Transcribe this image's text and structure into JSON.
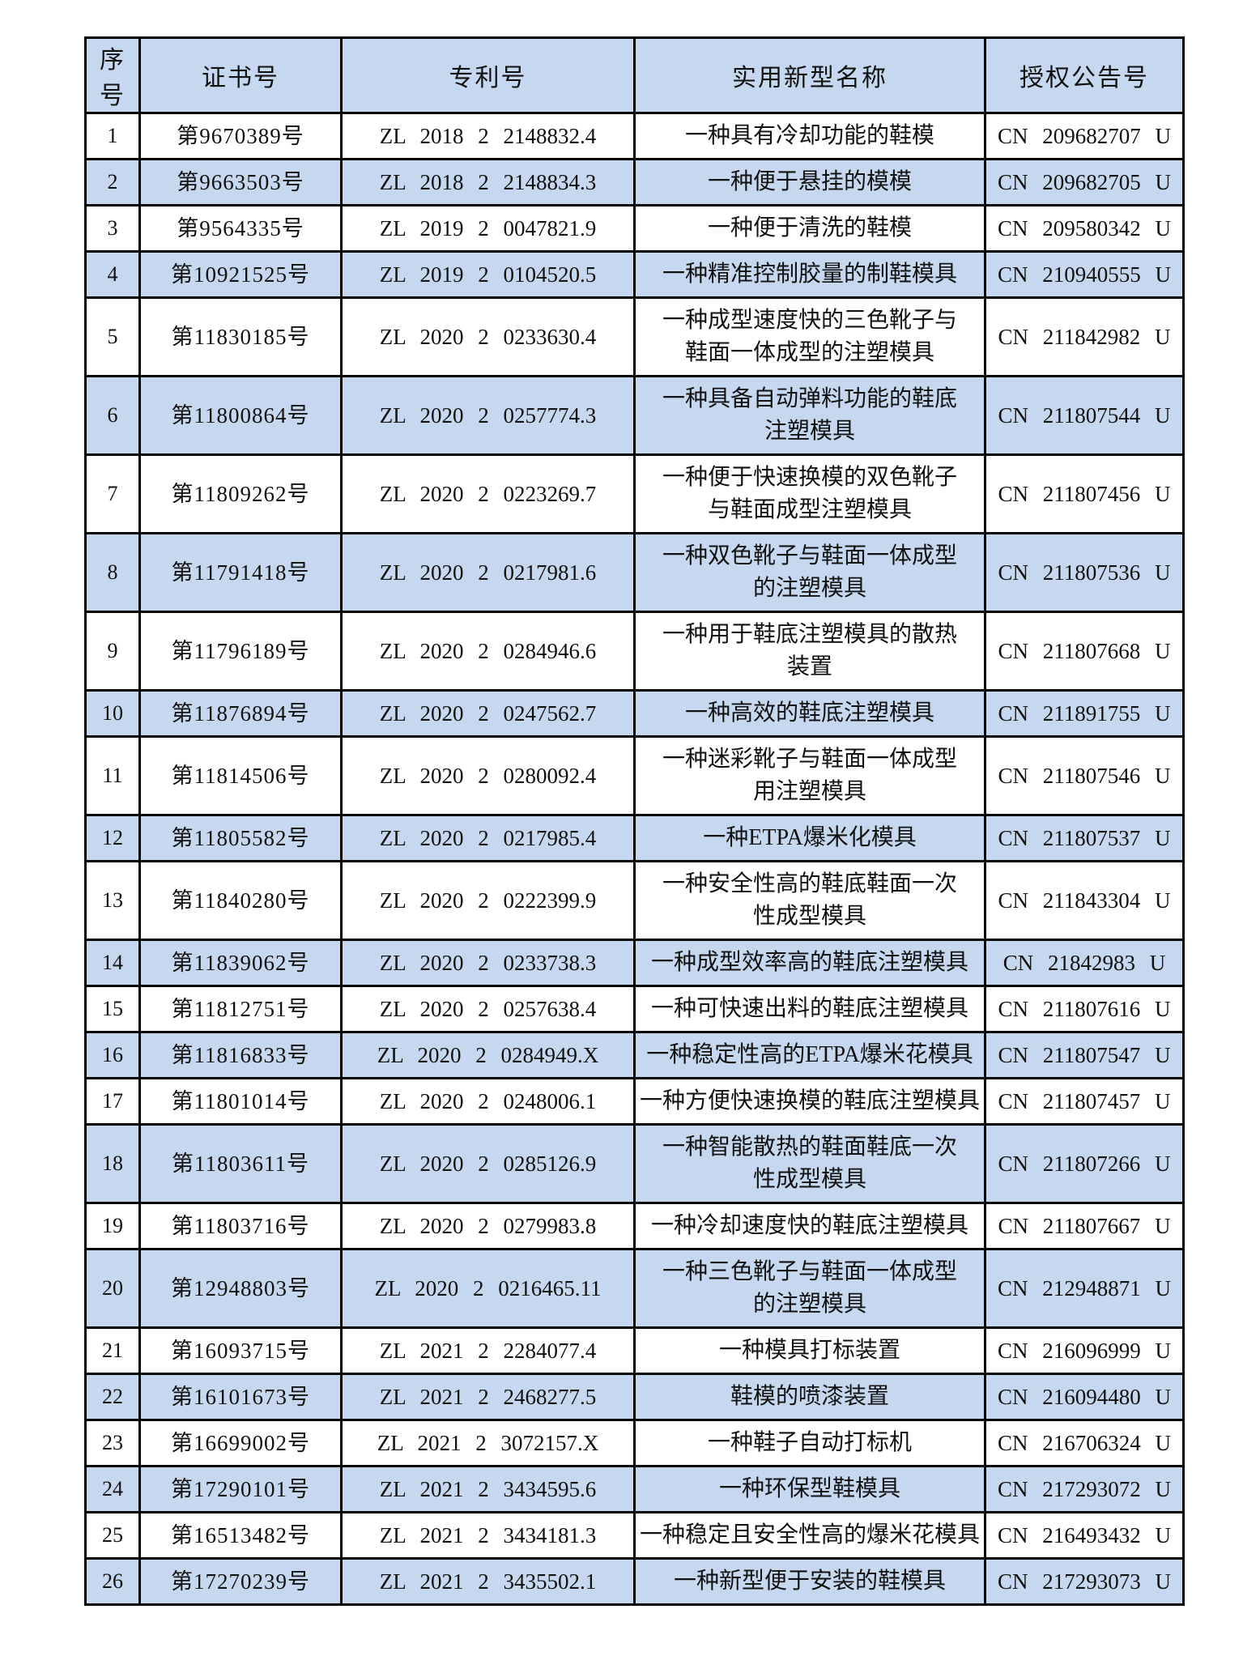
{
  "table": {
    "colors": {
      "header_bg": "#c5d8ef",
      "row_bg": "#ffffff",
      "row_alt_bg": "#c5d8ef",
      "border": "#000000"
    },
    "columns": [
      {
        "key": "no",
        "label": "序号"
      },
      {
        "key": "cert",
        "label": "证书号"
      },
      {
        "key": "patent",
        "label": "专利号"
      },
      {
        "key": "name",
        "label": "实用新型名称"
      },
      {
        "key": "cn",
        "label": "授权公告号"
      }
    ],
    "rows": [
      {
        "no": "1",
        "cert": "第9670389号",
        "patent": "ZL 2018 2 2148832.4",
        "name": "一种具有冷却功能的鞋模",
        "cn": "CN 209682707 U"
      },
      {
        "no": "2",
        "cert": "第9663503号",
        "patent": "ZL 2018 2 2148834.3",
        "name": "一种便于悬挂的模模",
        "cn": "CN 209682705 U"
      },
      {
        "no": "3",
        "cert": "第9564335号",
        "patent": "ZL 2019 2 0047821.9",
        "name": "一种便于清洗的鞋模",
        "cn": "CN 209580342 U"
      },
      {
        "no": "4",
        "cert": "第10921525号",
        "patent": "ZL 2019 2 0104520.5",
        "name": "一种精准控制胶量的制鞋模具",
        "cn": "CN 210940555 U"
      },
      {
        "no": "5",
        "cert": "第11830185号",
        "patent": "ZL 2020 2 0233630.4",
        "name": "一种成型速度快的三色靴子与\n鞋面一体成型的注塑模具",
        "cn": "CN 211842982 U"
      },
      {
        "no": "6",
        "cert": "第11800864号",
        "patent": "ZL 2020 2 0257774.3",
        "name": "一种具备自动弹料功能的鞋底\n注塑模具",
        "cn": "CN 211807544 U"
      },
      {
        "no": "7",
        "cert": "第11809262号",
        "patent": "ZL 2020 2 0223269.7",
        "name": "一种便于快速换模的双色靴子\n与鞋面成型注塑模具",
        "cn": "CN 211807456 U"
      },
      {
        "no": "8",
        "cert": "第11791418号",
        "patent": "ZL 2020 2 0217981.6",
        "name": "一种双色靴子与鞋面一体成型\n的注塑模具",
        "cn": "CN 211807536 U"
      },
      {
        "no": "9",
        "cert": "第11796189号",
        "patent": "ZL 2020 2 0284946.6",
        "name": "一种用于鞋底注塑模具的散热\n装置",
        "cn": "CN 211807668 U"
      },
      {
        "no": "10",
        "cert": "第11876894号",
        "patent": "ZL 2020 2 0247562.7",
        "name": "一种高效的鞋底注塑模具",
        "cn": "CN 211891755 U"
      },
      {
        "no": "11",
        "cert": "第11814506号",
        "patent": "ZL 2020 2 0280092.4",
        "name": "一种迷彩靴子与鞋面一体成型\n用注塑模具",
        "cn": "CN 211807546 U"
      },
      {
        "no": "12",
        "cert": "第11805582号",
        "patent": "ZL 2020 2 0217985.4",
        "name": "一种ETPA爆米化模具",
        "cn": "CN 211807537 U"
      },
      {
        "no": "13",
        "cert": "第11840280号",
        "patent": "ZL 2020 2 0222399.9",
        "name": "一种安全性高的鞋底鞋面一次\n性成型模具",
        "cn": "CN 211843304 U"
      },
      {
        "no": "14",
        "cert": "第11839062号",
        "patent": "ZL 2020 2 0233738.3",
        "name": "一种成型效率高的鞋底注塑模具",
        "cn": "CN 21842983 U"
      },
      {
        "no": "15",
        "cert": "第11812751号",
        "patent": "ZL 2020 2 0257638.4",
        "name": "一种可快速出料的鞋底注塑模具",
        "cn": "CN 211807616 U"
      },
      {
        "no": "16",
        "cert": "第11816833号",
        "patent": "ZL 2020 2 0284949.X",
        "name": "一种稳定性高的ETPA爆米花模具",
        "cn": "CN 211807547 U"
      },
      {
        "no": "17",
        "cert": "第11801014号",
        "patent": "ZL 2020 2 0248006.1",
        "name": "一种方便快速换模的鞋底注塑模具",
        "cn": "CN 211807457 U"
      },
      {
        "no": "18",
        "cert": "第11803611号",
        "patent": "ZL 2020 2 0285126.9",
        "name": "一种智能散热的鞋面鞋底一次\n性成型模具",
        "cn": "CN 211807266 U"
      },
      {
        "no": "19",
        "cert": "第11803716号",
        "patent": "ZL 2020 2 0279983.8",
        "name": "一种冷却速度快的鞋底注塑模具",
        "cn": "CN 211807667 U"
      },
      {
        "no": "20",
        "cert": "第12948803号",
        "patent": "ZL 2020 2 0216465.11",
        "name": "一种三色靴子与鞋面一体成型\n的注塑模具",
        "cn": "CN 212948871 U"
      },
      {
        "no": "21",
        "cert": "第16093715号",
        "patent": "ZL 2021 2 2284077.4",
        "name": "一种模具打标装置",
        "cn": "CN 216096999 U"
      },
      {
        "no": "22",
        "cert": "第16101673号",
        "patent": "ZL 2021 2 2468277.5",
        "name": "鞋模的喷漆装置",
        "cn": "CN 216094480 U"
      },
      {
        "no": "23",
        "cert": "第16699002号",
        "patent": "ZL 2021 2 3072157.X",
        "name": "一种鞋子自动打标机",
        "cn": "CN 216706324 U"
      },
      {
        "no": "24",
        "cert": "第17290101号",
        "patent": "ZL 2021 2 3434595.6",
        "name": "一种环保型鞋模具",
        "cn": "CN 217293072 U"
      },
      {
        "no": "25",
        "cert": "第16513482号",
        "patent": "ZL 2021 2 3434181.3",
        "name": "一种稳定且安全性高的爆米花模具",
        "cn": "CN 216493432 U"
      },
      {
        "no": "26",
        "cert": "第17270239号",
        "patent": "ZL 2021 2 3435502.1",
        "name": "一种新型便于安装的鞋模具",
        "cn": "CN 217293073 U"
      }
    ]
  }
}
